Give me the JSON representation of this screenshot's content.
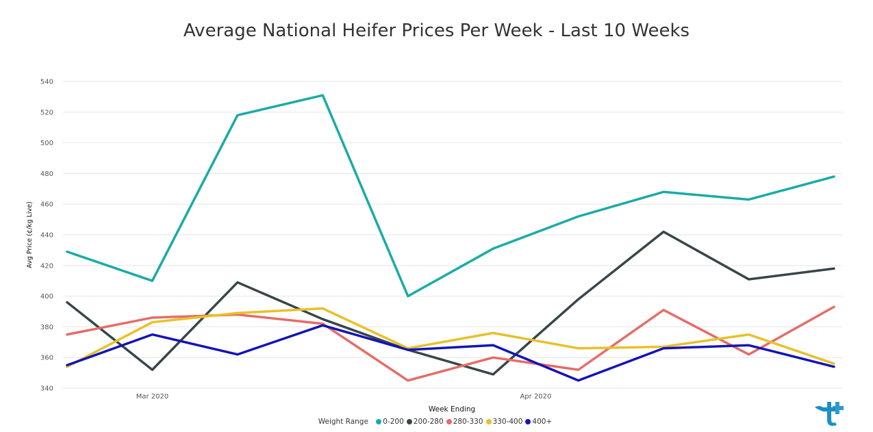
{
  "chart_data": {
    "type": "line",
    "title": "Average National Heifer Prices Per Week - Last 10 Weeks",
    "xlabel": "Week Ending",
    "ylabel": "Avg Price (¢/kg Live)",
    "ylim": [
      340,
      540
    ],
    "yticks": [
      340,
      360,
      380,
      400,
      420,
      440,
      460,
      480,
      500,
      520,
      540
    ],
    "xtick_labels": [
      {
        "index": 1,
        "label": "Mar 2020"
      },
      {
        "index": 5.5,
        "label": "Apr 2020"
      }
    ],
    "grid": true,
    "legend_title": "Weight Range",
    "legend_position": "bottom-center",
    "series": [
      {
        "name": "0-200",
        "color": "#1aaba6",
        "values": [
          429,
          410,
          518,
          531,
          400,
          431,
          452,
          468,
          463,
          478
        ]
      },
      {
        "name": "200-280",
        "color": "#374649",
        "values": [
          396,
          352,
          409,
          385,
          365,
          349,
          398,
          442,
          411,
          418
        ]
      },
      {
        "name": "280-330",
        "color": "#e66c66",
        "values": [
          375,
          386,
          388,
          382,
          345,
          360,
          352,
          391,
          362,
          393
        ]
      },
      {
        "name": "330-400",
        "color": "#e8c02a",
        "values": [
          354,
          383,
          389,
          392,
          366,
          376,
          366,
          367,
          375,
          356
        ]
      },
      {
        "name": "400+",
        "color": "#1414b8",
        "values": [
          355,
          375,
          362,
          381,
          365,
          368,
          345,
          366,
          368,
          354
        ]
      }
    ]
  },
  "logo": {
    "name": "tplus-logo-icon",
    "color": "#1a8fc9"
  }
}
